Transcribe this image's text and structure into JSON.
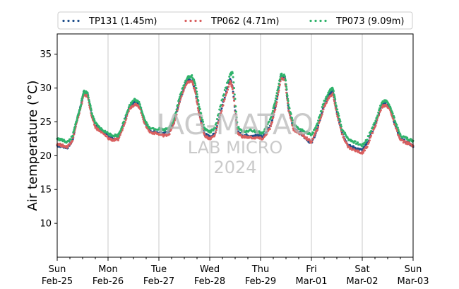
{
  "chart_data": {
    "type": "scatter",
    "title": "",
    "xlabel": "",
    "ylabel": "Air temperature (°C)",
    "ylim": [
      5,
      38
    ],
    "xlim": [
      0,
      7
    ],
    "y_ticks": [
      10,
      15,
      20,
      25,
      30,
      35
    ],
    "grid": "vertical at day boundaries",
    "legend_position": "top",
    "x_ticks": [
      {
        "day": "Sun",
        "date": "Feb-25"
      },
      {
        "day": "Mon",
        "date": "Feb-26"
      },
      {
        "day": "Tue",
        "date": "Feb-27"
      },
      {
        "day": "Wed",
        "date": "Feb-28"
      },
      {
        "day": "Thu",
        "date": "Feb-29"
      },
      {
        "day": "Fri",
        "date": "Mar-01"
      },
      {
        "day": "Sat",
        "date": "Mar-02"
      },
      {
        "day": "Sun",
        "date": "Mar-03"
      }
    ],
    "series": [
      {
        "name": "TP131 (1.45m)",
        "color": "#1f4e8c",
        "points": [
          [
            0,
            21.5
          ],
          [
            0.1,
            21.4
          ],
          [
            0.2,
            21.2
          ],
          [
            0.3,
            22.2
          ],
          [
            0.38,
            25.0
          ],
          [
            0.45,
            27.0
          ],
          [
            0.52,
            29.3
          ],
          [
            0.6,
            29.0
          ],
          [
            0.68,
            26.0
          ],
          [
            0.75,
            24.5
          ],
          [
            0.85,
            23.8
          ],
          [
            1.0,
            23.0
          ],
          [
            1.1,
            22.5
          ],
          [
            1.2,
            22.6
          ],
          [
            1.3,
            24.5
          ],
          [
            1.42,
            27.2
          ],
          [
            1.52,
            28.0
          ],
          [
            1.62,
            27.5
          ],
          [
            1.72,
            25.0
          ],
          [
            1.82,
            23.6
          ],
          [
            2.0,
            23.4
          ],
          [
            2.1,
            23.3
          ],
          [
            2.2,
            23.5
          ],
          [
            2.3,
            25.0
          ],
          [
            2.42,
            28.5
          ],
          [
            2.55,
            31.0
          ],
          [
            2.65,
            31.2
          ],
          [
            2.72,
            29.5
          ],
          [
            2.8,
            26.0
          ],
          [
            2.9,
            23.2
          ],
          [
            3.0,
            22.8
          ],
          [
            3.1,
            23.2
          ],
          [
            3.25,
            27.5
          ],
          [
            3.4,
            31.5
          ],
          [
            3.45,
            30.0
          ],
          [
            3.55,
            23.5
          ],
          [
            3.65,
            23.0
          ],
          [
            3.8,
            23.0
          ],
          [
            3.95,
            23.0
          ],
          [
            4.05,
            22.8
          ],
          [
            4.2,
            24.5
          ],
          [
            4.3,
            27.5
          ],
          [
            4.4,
            31.8
          ],
          [
            4.48,
            31.5
          ],
          [
            4.55,
            27.0
          ],
          [
            4.65,
            24.0
          ],
          [
            4.8,
            23.3
          ],
          [
            4.9,
            22.5
          ],
          [
            5.0,
            21.8
          ],
          [
            5.12,
            24.0
          ],
          [
            5.25,
            27.5
          ],
          [
            5.35,
            29.0
          ],
          [
            5.42,
            29.5
          ],
          [
            5.5,
            26.5
          ],
          [
            5.6,
            23.5
          ],
          [
            5.72,
            21.5
          ],
          [
            5.85,
            21.2
          ],
          [
            6.0,
            20.8
          ],
          [
            6.1,
            21.8
          ],
          [
            6.25,
            24.5
          ],
          [
            6.38,
            27.5
          ],
          [
            6.45,
            27.8
          ],
          [
            6.55,
            27.0
          ],
          [
            6.65,
            24.5
          ],
          [
            6.75,
            22.5
          ],
          [
            6.9,
            22.0
          ],
          [
            7.0,
            21.3
          ]
        ]
      },
      {
        "name": "TP062 (4.71m)",
        "color": "#d95f5f",
        "points": [
          [
            0,
            21.8
          ],
          [
            0.1,
            21.5
          ],
          [
            0.2,
            21.3
          ],
          [
            0.3,
            22.3
          ],
          [
            0.38,
            24.8
          ],
          [
            0.45,
            26.8
          ],
          [
            0.52,
            29.0
          ],
          [
            0.6,
            28.8
          ],
          [
            0.68,
            25.8
          ],
          [
            0.75,
            24.2
          ],
          [
            0.85,
            23.6
          ],
          [
            1.0,
            22.6
          ],
          [
            1.1,
            22.3
          ],
          [
            1.2,
            22.4
          ],
          [
            1.3,
            24.3
          ],
          [
            1.42,
            27.0
          ],
          [
            1.52,
            27.6
          ],
          [
            1.62,
            27.2
          ],
          [
            1.72,
            24.8
          ],
          [
            1.82,
            23.5
          ],
          [
            2.0,
            23.2
          ],
          [
            2.1,
            23.0
          ],
          [
            2.2,
            23.2
          ],
          [
            2.3,
            24.8
          ],
          [
            2.42,
            28.3
          ],
          [
            2.55,
            30.8
          ],
          [
            2.65,
            31.0
          ],
          [
            2.72,
            29.3
          ],
          [
            2.8,
            25.8
          ],
          [
            2.9,
            23.0
          ],
          [
            3.0,
            22.5
          ],
          [
            3.1,
            23.0
          ],
          [
            3.25,
            27.2
          ],
          [
            3.4,
            31.0
          ],
          [
            3.45,
            30.0
          ],
          [
            3.55,
            23.3
          ],
          [
            3.65,
            22.8
          ],
          [
            3.8,
            22.7
          ],
          [
            3.95,
            22.6
          ],
          [
            4.05,
            22.5
          ],
          [
            4.2,
            24.2
          ],
          [
            4.3,
            27.2
          ],
          [
            4.4,
            31.5
          ],
          [
            4.48,
            31.2
          ],
          [
            4.55,
            26.8
          ],
          [
            4.65,
            23.8
          ],
          [
            4.8,
            23.2
          ],
          [
            4.9,
            22.6
          ],
          [
            5.0,
            22.0
          ],
          [
            5.12,
            24.0
          ],
          [
            5.25,
            27.2
          ],
          [
            5.35,
            28.7
          ],
          [
            5.42,
            29.2
          ],
          [
            5.5,
            26.3
          ],
          [
            5.6,
            23.3
          ],
          [
            5.72,
            21.3
          ],
          [
            5.85,
            20.8
          ],
          [
            6.0,
            20.4
          ],
          [
            6.1,
            21.5
          ],
          [
            6.25,
            24.3
          ],
          [
            6.38,
            27.2
          ],
          [
            6.45,
            27.5
          ],
          [
            6.55,
            26.8
          ],
          [
            6.65,
            24.3
          ],
          [
            6.75,
            22.3
          ],
          [
            6.9,
            21.8
          ],
          [
            7.0,
            21.5
          ]
        ]
      },
      {
        "name": "TP073 (9.09m)",
        "color": "#2fb36b",
        "points": [
          [
            0,
            22.5
          ],
          [
            0.1,
            22.3
          ],
          [
            0.2,
            22.0
          ],
          [
            0.3,
            22.8
          ],
          [
            0.38,
            25.2
          ],
          [
            0.45,
            27.0
          ],
          [
            0.52,
            29.5
          ],
          [
            0.6,
            29.3
          ],
          [
            0.68,
            26.3
          ],
          [
            0.75,
            24.8
          ],
          [
            0.85,
            24.0
          ],
          [
            1.0,
            23.3
          ],
          [
            1.1,
            23.0
          ],
          [
            1.2,
            23.0
          ],
          [
            1.3,
            24.8
          ],
          [
            1.42,
            27.5
          ],
          [
            1.52,
            28.3
          ],
          [
            1.62,
            27.8
          ],
          [
            1.72,
            25.3
          ],
          [
            1.82,
            24.0
          ],
          [
            2.0,
            24.0
          ],
          [
            2.1,
            23.8
          ],
          [
            2.2,
            24.0
          ],
          [
            2.3,
            25.5
          ],
          [
            2.42,
            29.0
          ],
          [
            2.55,
            31.5
          ],
          [
            2.65,
            31.8
          ],
          [
            2.72,
            30.5
          ],
          [
            2.8,
            27.0
          ],
          [
            2.9,
            24.0
          ],
          [
            3.0,
            23.5
          ],
          [
            3.1,
            24.0
          ],
          [
            3.25,
            28.5
          ],
          [
            3.4,
            32.0
          ],
          [
            3.45,
            32.3
          ],
          [
            3.55,
            24.2
          ],
          [
            3.65,
            23.5
          ],
          [
            3.8,
            23.8
          ],
          [
            3.95,
            23.5
          ],
          [
            4.05,
            23.3
          ],
          [
            4.2,
            25.5
          ],
          [
            4.3,
            28.5
          ],
          [
            4.4,
            32.0
          ],
          [
            4.48,
            31.8
          ],
          [
            4.55,
            27.5
          ],
          [
            4.65,
            24.5
          ],
          [
            4.8,
            23.8
          ],
          [
            4.9,
            23.5
          ],
          [
            5.0,
            23.0
          ],
          [
            5.12,
            24.8
          ],
          [
            5.25,
            28.0
          ],
          [
            5.35,
            29.5
          ],
          [
            5.42,
            30.0
          ],
          [
            5.5,
            27.0
          ],
          [
            5.6,
            24.0
          ],
          [
            5.72,
            22.5
          ],
          [
            5.85,
            22.0
          ],
          [
            6.0,
            21.5
          ],
          [
            6.1,
            22.5
          ],
          [
            6.25,
            25.0
          ],
          [
            6.38,
            27.8
          ],
          [
            6.45,
            28.2
          ],
          [
            6.55,
            27.3
          ],
          [
            6.65,
            25.0
          ],
          [
            6.75,
            23.0
          ],
          [
            6.9,
            22.5
          ],
          [
            7.0,
            22.2
          ]
        ]
      }
    ]
  },
  "watermark": {
    "line1": "IAG-MATAO",
    "line2": "LAB MICRO",
    "line3": "2024"
  }
}
